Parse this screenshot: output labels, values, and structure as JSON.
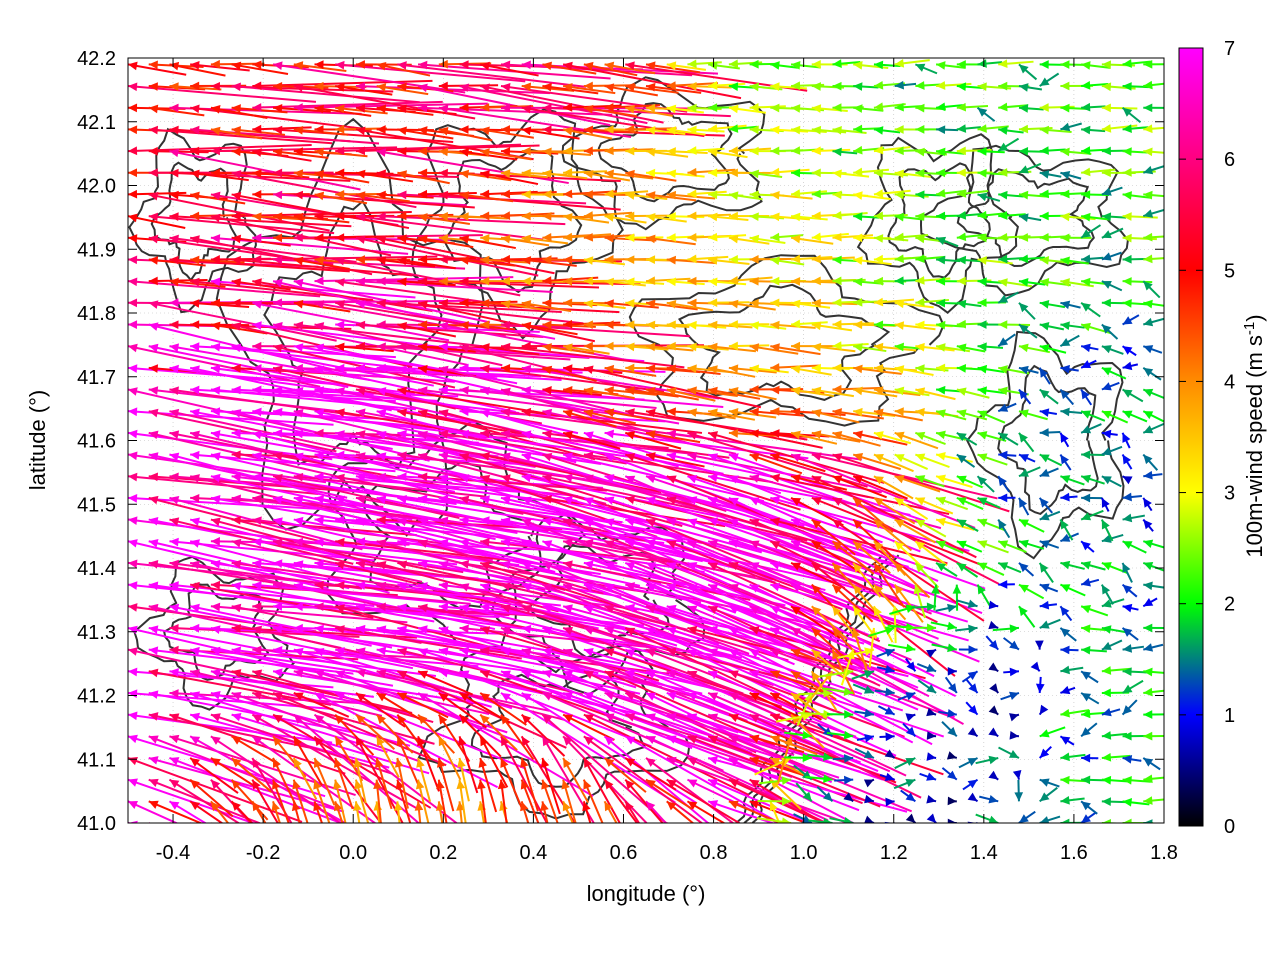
{
  "chart_data": {
    "type": "vector-field",
    "xlabel": "longitude (°)",
    "ylabel": "latitude (°)",
    "xlim": [
      -0.5,
      1.8
    ],
    "ylim": [
      41.0,
      42.2
    ],
    "xticks": [
      "-0.4",
      "-0.2",
      "0.0",
      "0.2",
      "0.4",
      "0.6",
      "0.8",
      "1.0",
      "1.2",
      "1.4",
      "1.6",
      "1.8"
    ],
    "yticks": [
      "41.0",
      "41.1",
      "41.2",
      "41.3",
      "41.4",
      "41.5",
      "41.6",
      "41.7",
      "41.8",
      "41.9",
      "42.0",
      "42.1",
      "42.2"
    ],
    "colorbar": {
      "label": "100m-wind speed (m s-1)",
      "label_main": "100m-wind speed (m s",
      "label_sup": "-1",
      "label_end": ")",
      "range": [
        0,
        7
      ],
      "ticks": [
        "0",
        "1",
        "2",
        "3",
        "4",
        "5",
        "6",
        "7"
      ],
      "palette": [
        "#000000",
        "#0000ff",
        "#00ff00",
        "#ffff00",
        "#ff8c00",
        "#ff0000",
        "#ff00ff"
      ]
    },
    "vector_regions": [
      {
        "lon": [
          -0.5,
          0.35
        ],
        "lat": [
          41.2,
          41.8
        ],
        "speed_ms": 7,
        "direction": "westward, from east-southeast"
      },
      {
        "lon": [
          0.3,
          1.1
        ],
        "lat": [
          41.25,
          41.65
        ],
        "speed_ms": 7,
        "direction": "west-northwestward"
      },
      {
        "lon": [
          -0.5,
          0.2
        ],
        "lat": [
          41.8,
          42.2
        ],
        "speed_ms": 5.5,
        "direction": "westward"
      },
      {
        "lon": [
          0.2,
          1.0
        ],
        "lat": [
          41.8,
          42.0
        ],
        "speed_ms": 4.5,
        "direction": "westward"
      },
      {
        "lon": [
          1.0,
          1.6
        ],
        "lat": [
          41.8,
          42.1
        ],
        "speed_ms": 2.5,
        "direction": "westward"
      },
      {
        "lon": [
          1.1,
          1.5
        ],
        "lat": [
          41.05,
          41.35
        ],
        "speed_ms": 1.0,
        "direction": "variable, eastward"
      },
      {
        "lon": [
          1.5,
          1.8
        ],
        "lat": [
          41.0,
          41.3
        ],
        "speed_ms": 2.0,
        "direction": "westward"
      },
      {
        "lon": [
          1.3,
          1.8
        ],
        "lat": [
          41.4,
          41.7
        ],
        "speed_ms": 1.5,
        "direction": "variable"
      }
    ],
    "contours": "terrain elevation isolines (dark gray)",
    "grid": true
  }
}
